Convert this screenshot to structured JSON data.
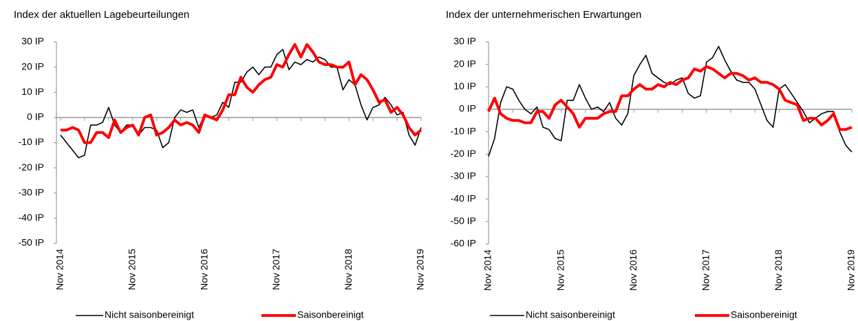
{
  "chart_data": [
    {
      "type": "line",
      "title": "Index der aktuellen Lagebeurteilungen",
      "categories": [
        "Nov 2014",
        null,
        null,
        null,
        null,
        null,
        null,
        null,
        null,
        null,
        null,
        null,
        "Nov 2015",
        null,
        null,
        null,
        null,
        null,
        null,
        null,
        null,
        null,
        null,
        null,
        "Nov 2016",
        null,
        null,
        null,
        null,
        null,
        null,
        null,
        null,
        null,
        null,
        null,
        "Nov 2017",
        null,
        null,
        null,
        null,
        null,
        null,
        null,
        null,
        null,
        null,
        null,
        "Nov 2018",
        null,
        null,
        null,
        null,
        null,
        null,
        null,
        null,
        null,
        null,
        null,
        "Nov 2019"
      ],
      "series": [
        {
          "name": "Nicht saisonbereinigt",
          "color": "#000000",
          "values": [
            -7,
            -10,
            -13,
            -16,
            -15,
            -3,
            -3,
            -2,
            4,
            -3,
            -6,
            -3,
            -3,
            -7,
            -4,
            -4,
            -5,
            -12,
            -10,
            0,
            3,
            2,
            3,
            -4,
            1,
            0,
            1,
            6,
            4,
            14,
            14,
            18,
            20,
            17,
            20,
            20,
            25,
            27,
            19,
            22,
            21,
            23,
            22,
            24,
            23,
            20,
            20,
            11,
            15,
            13,
            5,
            -1,
            4,
            5,
            8,
            5,
            1,
            2,
            -7,
            -11,
            -4
          ]
        },
        {
          "name": "Saisonbereinigt",
          "color": "#ff0000",
          "values": [
            -5,
            -5,
            -4,
            -5,
            -10,
            -10,
            -6,
            -6,
            -8,
            -1,
            -6,
            -4,
            -3,
            -7,
            0,
            1,
            -7,
            -6,
            -4,
            -1,
            -3,
            -2,
            -3,
            -6,
            1,
            0,
            -1,
            3,
            9,
            9,
            16,
            12,
            10,
            13,
            15,
            16,
            21,
            20,
            25,
            29,
            24,
            29,
            26,
            22,
            21,
            21,
            20,
            20,
            22,
            13,
            17,
            15,
            11,
            6,
            7,
            2,
            4,
            1,
            -4,
            -7,
            -5
          ]
        }
      ],
      "ylim": [
        -50,
        30
      ],
      "yticks": [
        {
          "value": 30,
          "label": "30 IP"
        },
        {
          "value": 20,
          "label": "20 IP"
        },
        {
          "value": 10,
          "label": "10 IP"
        },
        {
          "value": 0,
          "label": "0 IP"
        },
        {
          "value": -10,
          "label": "-10 IP"
        },
        {
          "value": -20,
          "label": "-20 IP"
        },
        {
          "value": -30,
          "label": "-30 IP"
        },
        {
          "value": -40,
          "label": "-40 IP"
        },
        {
          "value": -50,
          "label": "-50 IP"
        }
      ]
    },
    {
      "type": "line",
      "title": "Index der unternehmerischen Erwartungen",
      "categories": [
        "Nov 2014",
        null,
        null,
        null,
        null,
        null,
        null,
        null,
        null,
        null,
        null,
        null,
        "Nov 2015",
        null,
        null,
        null,
        null,
        null,
        null,
        null,
        null,
        null,
        null,
        null,
        "Nov 2016",
        null,
        null,
        null,
        null,
        null,
        null,
        null,
        null,
        null,
        null,
        null,
        "Nov 2017",
        null,
        null,
        null,
        null,
        null,
        null,
        null,
        null,
        null,
        null,
        null,
        "Nov 2018",
        null,
        null,
        null,
        null,
        null,
        null,
        null,
        null,
        null,
        null,
        null,
        "Nov 2019"
      ],
      "series": [
        {
          "name": "Nicht saisonbereinigt",
          "color": "#000000",
          "values": [
            -21,
            -13,
            3,
            10,
            9,
            4,
            0,
            -2,
            1,
            -8,
            -9,
            -13,
            -14,
            4,
            4,
            11,
            5,
            0,
            1,
            -1,
            3,
            -4,
            -7,
            -2,
            15,
            20,
            24,
            16,
            14,
            12,
            11,
            13,
            14,
            7,
            5,
            6,
            21,
            23,
            28,
            22,
            17,
            13,
            12,
            12,
            9,
            2,
            -5,
            -8,
            9,
            11,
            7,
            3,
            -1,
            -6,
            -4,
            -2,
            -1,
            -1,
            -10,
            -16,
            -19
          ]
        },
        {
          "name": "Saisonbereinigt",
          "color": "#ff0000",
          "values": [
            -1,
            5,
            -2,
            -4,
            -5,
            -5,
            -6,
            -6,
            -1,
            -1,
            -4,
            2,
            4,
            1,
            -2,
            -8,
            -4,
            -4,
            -4,
            -2,
            -1,
            -1,
            6,
            6,
            9,
            11,
            9,
            9,
            11,
            10,
            12,
            11,
            13,
            14,
            18,
            17,
            19,
            18,
            16,
            14,
            16,
            16,
            15,
            13,
            14,
            12,
            12,
            11,
            9,
            4,
            3,
            2,
            -5,
            -4,
            -4,
            -7,
            -5,
            -2,
            -9,
            -9,
            -8
          ]
        }
      ],
      "ylim": [
        -60,
        30
      ],
      "yticks": [
        {
          "value": 30,
          "label": "30 IP"
        },
        {
          "value": 20,
          "label": "20 IP"
        },
        {
          "value": 10,
          "label": "10 IP"
        },
        {
          "value": 0,
          "label": "0 IP"
        },
        {
          "value": -10,
          "label": "-10 IP"
        },
        {
          "value": -20,
          "label": "-20 IP"
        },
        {
          "value": -30,
          "label": "-30 IP"
        },
        {
          "value": -40,
          "label": "-40 IP"
        },
        {
          "value": -50,
          "label": "-50 IP"
        },
        {
          "value": -60,
          "label": "-60 IP"
        }
      ]
    }
  ]
}
